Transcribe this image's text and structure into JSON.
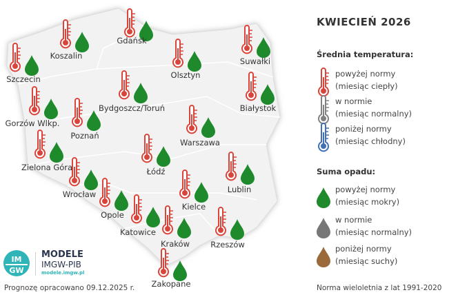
{
  "title": "KWIECIEŃ 2026",
  "colors": {
    "warm": "#d9453b",
    "normal_temp": "#808080",
    "cold": "#3f6fb5",
    "wet": "#1f8a2c",
    "normal_precip": "#777777",
    "dry": "#9a6a3a"
  },
  "legend": {
    "temperature_heading": "Średnia temperatura:",
    "temperature_items": [
      {
        "icon": "thermometer-red-icon",
        "line1": "powyżej normy",
        "line2": "(miesiąc ciepły)"
      },
      {
        "icon": "thermometer-gray-icon",
        "line1": "w normie",
        "line2": "(miesiąc normalny)"
      },
      {
        "icon": "thermometer-blue-icon",
        "line1": "poniżej normy",
        "line2": "(miesiąc chłodny)"
      }
    ],
    "precip_heading": "Suma opadu:",
    "precip_items": [
      {
        "icon": "drop-green-icon",
        "line1": "powyżej normy",
        "line2": "(miesiąc mokry)"
      },
      {
        "icon": "drop-gray-icon",
        "line1": "w normie",
        "line2": "(miesiąc normalny)"
      },
      {
        "icon": "drop-brown-icon",
        "line1": "poniżej normy",
        "line2": "(miesiąc suchy)"
      }
    ]
  },
  "cities": [
    {
      "name": "Koszalin",
      "temperature": "powyżej normy",
      "precip": "powyżej normy"
    },
    {
      "name": "Gdańsk",
      "temperature": "powyżej normy",
      "precip": "powyżej normy"
    },
    {
      "name": "Szczecin",
      "temperature": "powyżej normy",
      "precip": "powyżej normy"
    },
    {
      "name": "Olsztyn",
      "temperature": "powyżej normy",
      "precip": "powyżej normy"
    },
    {
      "name": "Suwałki",
      "temperature": "powyżej normy",
      "precip": "powyżej normy"
    },
    {
      "name": "Bydgoszcz/Toruń",
      "temperature": "powyżej normy",
      "precip": "powyżej normy"
    },
    {
      "name": "Białystok",
      "temperature": "powyżej normy",
      "precip": "powyżej normy"
    },
    {
      "name": "Gorzów Wlkp.",
      "temperature": "powyżej normy",
      "precip": "powyżej normy"
    },
    {
      "name": "Poznań",
      "temperature": "powyżej normy",
      "precip": "powyżej normy"
    },
    {
      "name": "Warszawa",
      "temperature": "powyżej normy",
      "precip": "powyżej normy"
    },
    {
      "name": "Zielona Góra",
      "temperature": "powyżej normy",
      "precip": "powyżej normy"
    },
    {
      "name": "Łódź",
      "temperature": "powyżej normy",
      "precip": "powyżej normy"
    },
    {
      "name": "Wrocław",
      "temperature": "powyżej normy",
      "precip": "powyżej normy"
    },
    {
      "name": "Lublin",
      "temperature": "powyżej normy",
      "precip": "powyżej normy"
    },
    {
      "name": "Kielce",
      "temperature": "powyżej normy",
      "precip": "powyżej normy"
    },
    {
      "name": "Opole",
      "temperature": "powyżej normy",
      "precip": "powyżej normy"
    },
    {
      "name": "Katowice",
      "temperature": "powyżej normy",
      "precip": "powyżej normy"
    },
    {
      "name": "Kraków",
      "temperature": "powyżej normy",
      "precip": "powyżej normy"
    },
    {
      "name": "Rzeszów",
      "temperature": "powyżej normy",
      "precip": "powyżej normy"
    },
    {
      "name": "Zakopane",
      "temperature": "powyżej normy",
      "precip": "powyżej normy"
    }
  ],
  "logo": {
    "name": "MODELE",
    "org": "IMGW-PIB",
    "url": "modele.imgw.pl",
    "mark": "IMGW"
  },
  "footer": {
    "left": "Prognozę opracowano 09.12.2025 r.",
    "right": "Norma wieloletnia z lat 1991-2020"
  }
}
